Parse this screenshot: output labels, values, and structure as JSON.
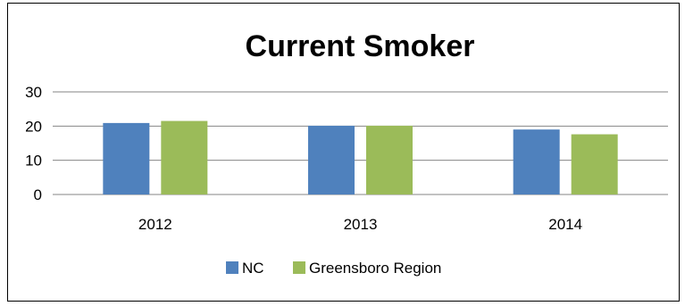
{
  "chart_data": {
    "type": "bar",
    "title": "Current Smoker",
    "xlabel": "",
    "ylabel": "",
    "categories": [
      "2012",
      "2013",
      "2014"
    ],
    "series": [
      {
        "name": "NC",
        "values": [
          20.9,
          20.1,
          19.0
        ],
        "color": "#4f81bd"
      },
      {
        "name": "Greensboro Region",
        "values": [
          21.5,
          20.1,
          17.6
        ],
        "color": "#9bbb59"
      }
    ],
    "ylim": [
      0,
      30
    ],
    "yticks": [
      "0",
      "10",
      "20",
      "30"
    ],
    "grid": true,
    "legend": "bottom"
  }
}
